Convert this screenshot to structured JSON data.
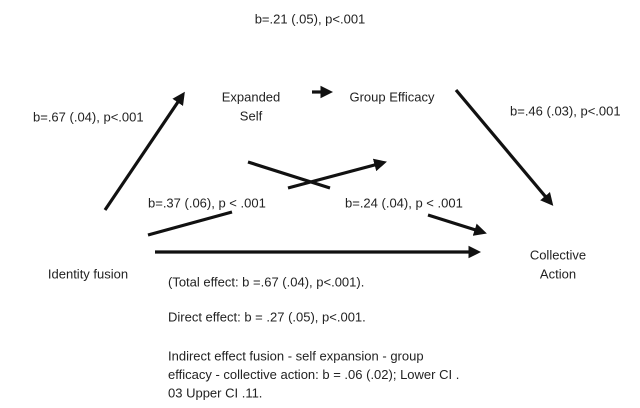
{
  "nodes": [
    {
      "label": [
        "Identity fusion"
      ]
    },
    {
      "label": [
        "Expanded",
        "Self"
      ]
    },
    {
      "label": [
        "Group Efficacy"
      ]
    },
    {
      "label": [
        "Collective",
        "Action"
      ]
    }
  ],
  "edges": [
    {
      "label": "b=.21 (.05), p<.001"
    },
    {
      "label": "b=.67 (.04), p<.001"
    },
    {
      "label": "b=.46 (.03), p<.001"
    },
    {
      "label": "b=.37 (.06), p < .001"
    },
    {
      "label": "b=.24 (.04), p < .001"
    }
  ],
  "notes": [
    [
      "(Total effect: b =.67 (.04), p<.001)."
    ],
    [
      "Direct effect: b = .27 (.05), p<.001."
    ],
    [
      "Indirect effect fusion - self expansion - group",
      "efficacy - collective action: b = .06 (.02); Lower CI .",
      "03 Upper CI .11."
    ]
  ]
}
